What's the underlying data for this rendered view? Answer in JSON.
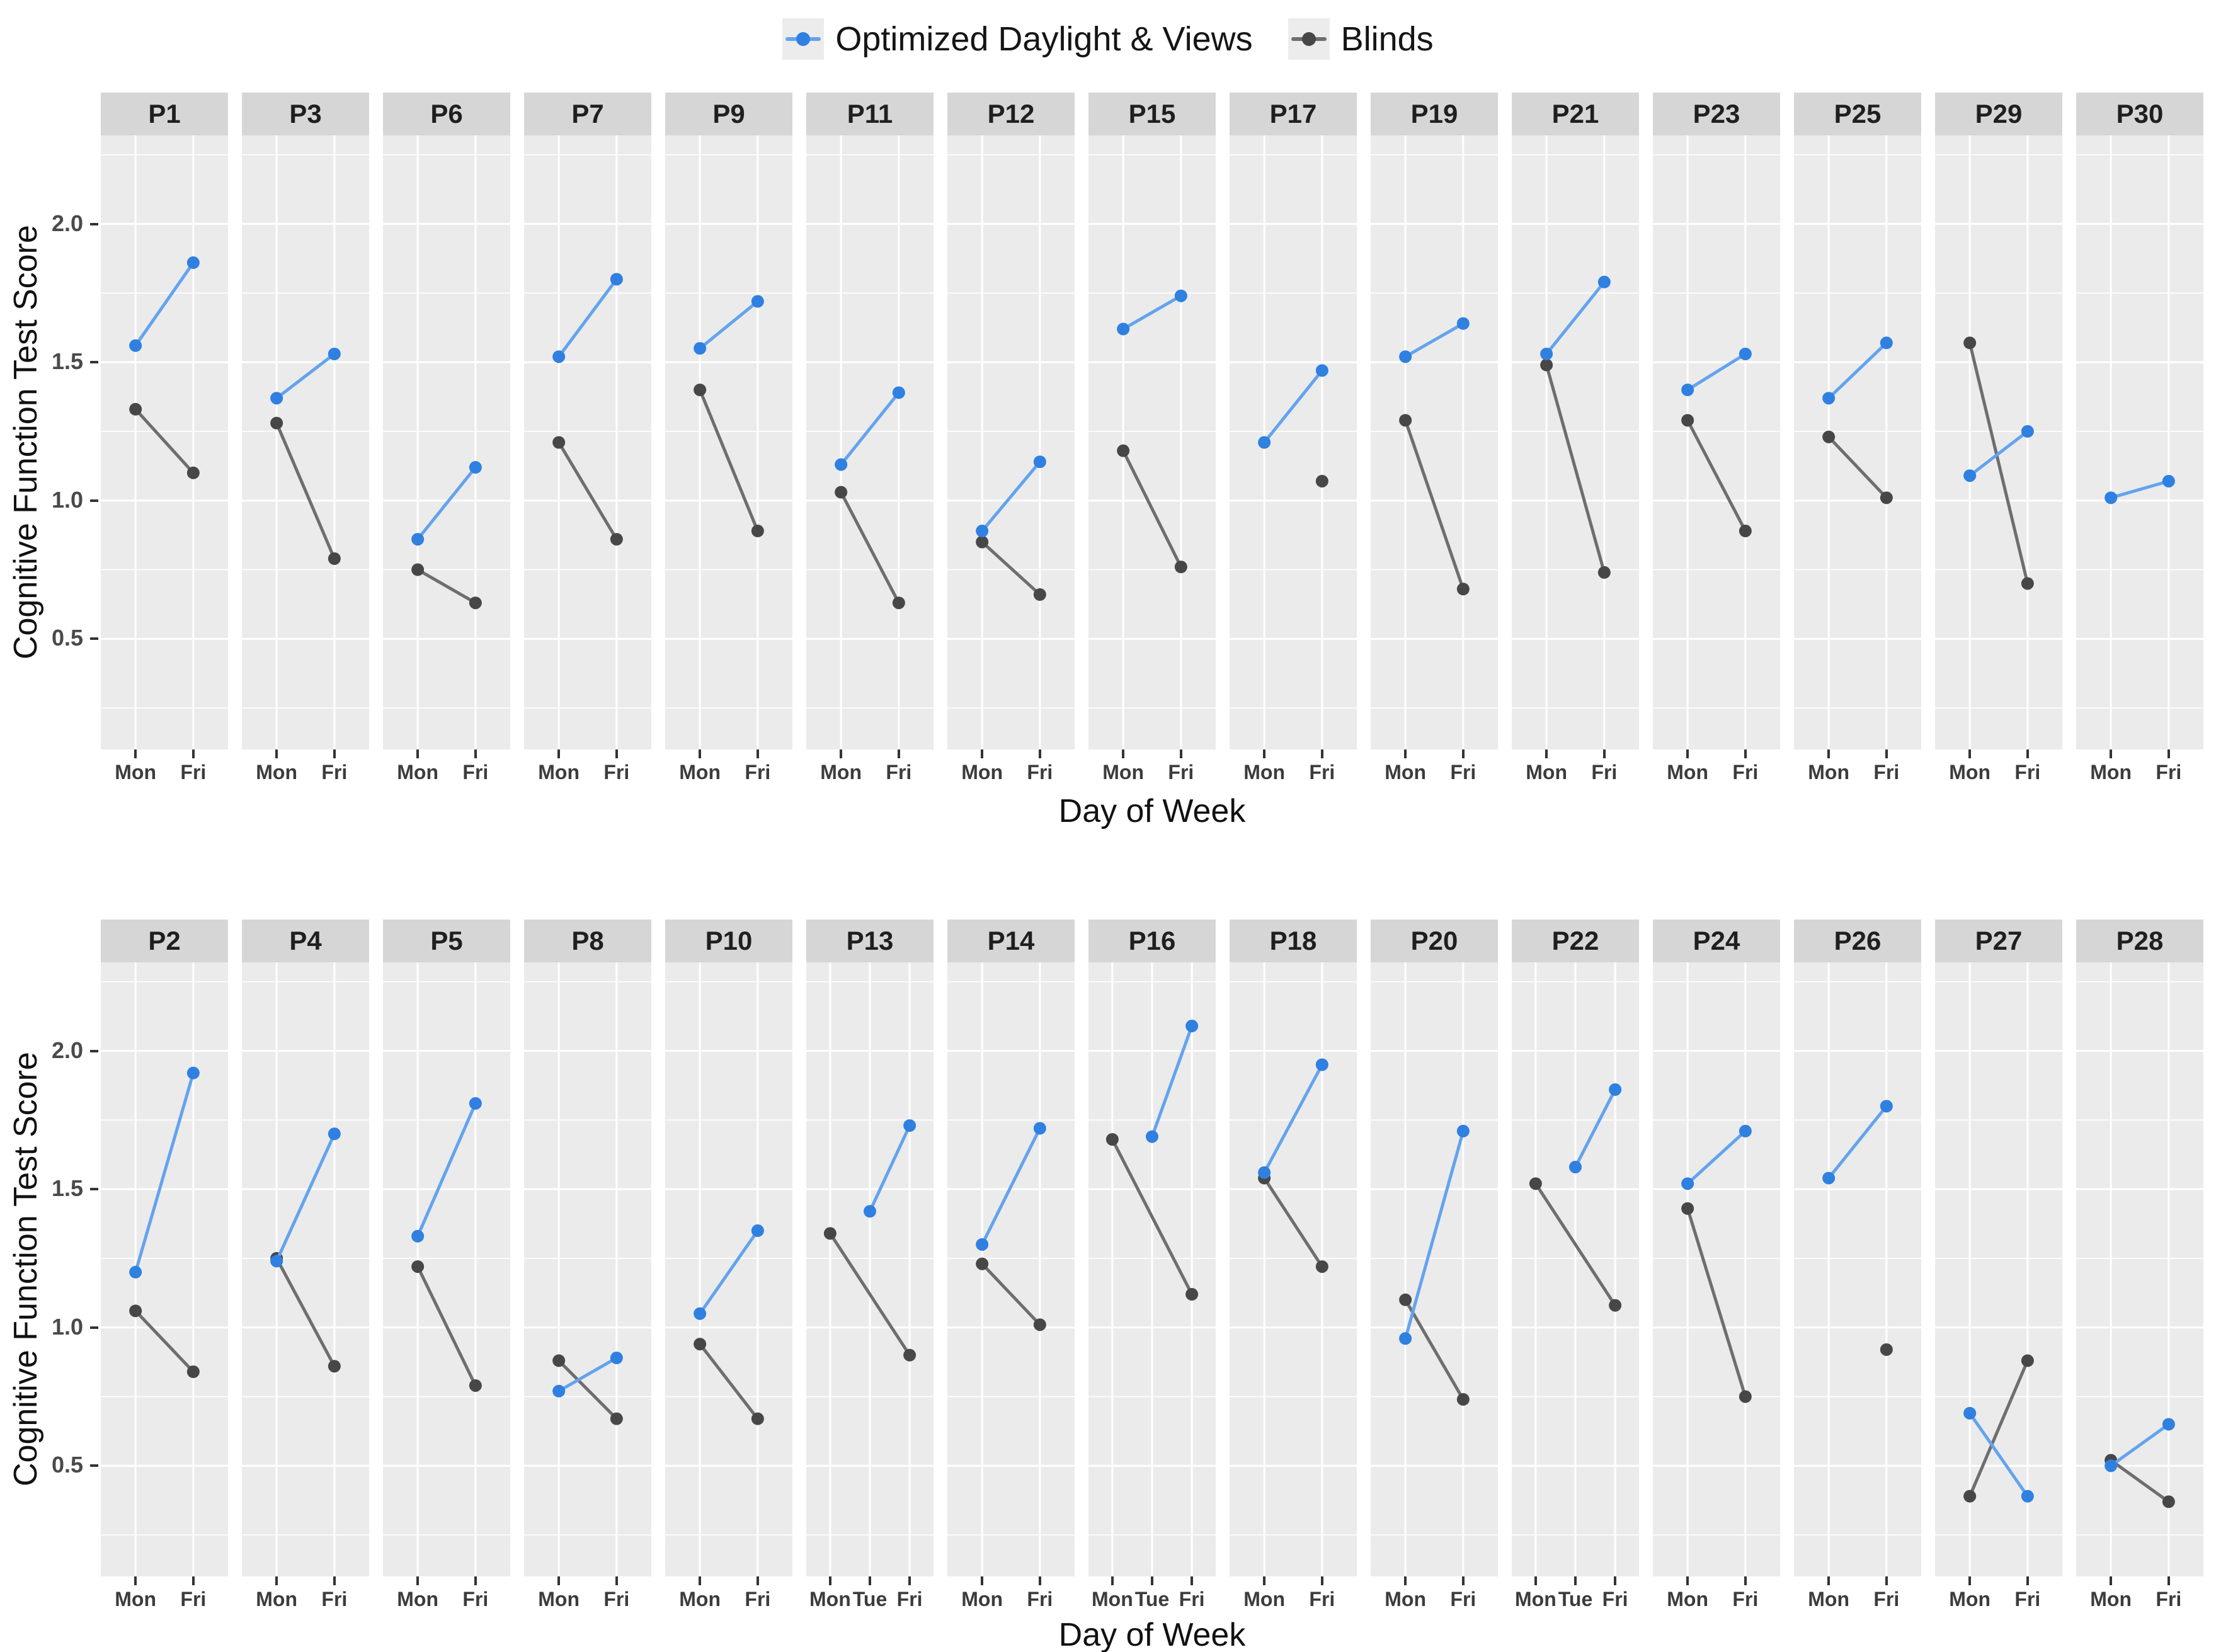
{
  "chart_data": {
    "type": "line",
    "faceted": true,
    "y_label": "Cognitive Function Test Score",
    "ylim": [
      0.1,
      2.32
    ],
    "y_ticks": [
      0.5,
      1.0,
      1.5,
      2.0
    ],
    "y_minor": [
      0.25,
      0.75,
      1.25,
      1.75,
      2.25
    ],
    "grid": "on",
    "legend_position": "top-center",
    "panel_bg": "#ebebeb",
    "strip_bg": "#d6d6d6",
    "grid_color": "#ffffff",
    "legend": [
      {
        "key": "optimized",
        "label": "Optimized Daylight & Views",
        "point_color": "#2f80e0",
        "line_color": "#63a3ee"
      },
      {
        "key": "blinds",
        "label": "Blinds",
        "point_color": "#474747",
        "line_color": "#6e6e6e"
      }
    ],
    "rows": [
      {
        "x_label": "Day of Week",
        "facets": [
          {
            "label": "P1",
            "x_levels": [
              "Mon",
              "Fri"
            ],
            "optimized": [
              [
                "Mon",
                1.56
              ],
              [
                "Fri",
                1.86
              ]
            ],
            "blinds": [
              [
                "Mon",
                1.33
              ],
              [
                "Fri",
                1.1
              ]
            ]
          },
          {
            "label": "P3",
            "x_levels": [
              "Mon",
              "Fri"
            ],
            "optimized": [
              [
                "Mon",
                1.37
              ],
              [
                "Fri",
                1.53
              ]
            ],
            "blinds": [
              [
                "Mon",
                1.28
              ],
              [
                "Fri",
                0.79
              ]
            ]
          },
          {
            "label": "P6",
            "x_levels": [
              "Mon",
              "Fri"
            ],
            "optimized": [
              [
                "Mon",
                0.86
              ],
              [
                "Fri",
                1.12
              ]
            ],
            "blinds": [
              [
                "Mon",
                0.75
              ],
              [
                "Fri",
                0.63
              ]
            ]
          },
          {
            "label": "P7",
            "x_levels": [
              "Mon",
              "Fri"
            ],
            "optimized": [
              [
                "Mon",
                1.52
              ],
              [
                "Fri",
                1.8
              ]
            ],
            "blinds": [
              [
                "Mon",
                1.21
              ],
              [
                "Fri",
                0.86
              ]
            ]
          },
          {
            "label": "P9",
            "x_levels": [
              "Mon",
              "Fri"
            ],
            "optimized": [
              [
                "Mon",
                1.55
              ],
              [
                "Fri",
                1.72
              ]
            ],
            "blinds": [
              [
                "Mon",
                1.4
              ],
              [
                "Fri",
                0.89
              ]
            ]
          },
          {
            "label": "P11",
            "x_levels": [
              "Mon",
              "Fri"
            ],
            "optimized": [
              [
                "Mon",
                1.13
              ],
              [
                "Fri",
                1.39
              ]
            ],
            "blinds": [
              [
                "Mon",
                1.03
              ],
              [
                "Fri",
                0.63
              ]
            ]
          },
          {
            "label": "P12",
            "x_levels": [
              "Mon",
              "Fri"
            ],
            "optimized": [
              [
                "Mon",
                0.89
              ],
              [
                "Fri",
                1.14
              ]
            ],
            "blinds": [
              [
                "Mon",
                0.85
              ],
              [
                "Fri",
                0.66
              ]
            ]
          },
          {
            "label": "P15",
            "x_levels": [
              "Mon",
              "Fri"
            ],
            "optimized": [
              [
                "Mon",
                1.62
              ],
              [
                "Fri",
                1.74
              ]
            ],
            "blinds": [
              [
                "Mon",
                1.18
              ],
              [
                "Fri",
                0.76
              ]
            ]
          },
          {
            "label": "P17",
            "x_levels": [
              "Mon",
              "Fri"
            ],
            "optimized": [
              [
                "Mon",
                1.21
              ],
              [
                "Fri",
                1.47
              ]
            ],
            "blinds": [
              [
                "Fri",
                1.07
              ]
            ]
          },
          {
            "label": "P19",
            "x_levels": [
              "Mon",
              "Fri"
            ],
            "optimized": [
              [
                "Mon",
                1.52
              ],
              [
                "Fri",
                1.64
              ]
            ],
            "blinds": [
              [
                "Mon",
                1.29
              ],
              [
                "Fri",
                0.68
              ]
            ]
          },
          {
            "label": "P21",
            "x_levels": [
              "Mon",
              "Fri"
            ],
            "optimized": [
              [
                "Mon",
                1.53
              ],
              [
                "Fri",
                1.79
              ]
            ],
            "blinds": [
              [
                "Mon",
                1.49
              ],
              [
                "Fri",
                0.74
              ]
            ]
          },
          {
            "label": "P23",
            "x_levels": [
              "Mon",
              "Fri"
            ],
            "optimized": [
              [
                "Mon",
                1.4
              ],
              [
                "Fri",
                1.53
              ]
            ],
            "blinds": [
              [
                "Mon",
                1.29
              ],
              [
                "Fri",
                0.89
              ]
            ]
          },
          {
            "label": "P25",
            "x_levels": [
              "Mon",
              "Fri"
            ],
            "optimized": [
              [
                "Mon",
                1.37
              ],
              [
                "Fri",
                1.57
              ]
            ],
            "blinds": [
              [
                "Mon",
                1.23
              ],
              [
                "Fri",
                1.01
              ]
            ]
          },
          {
            "label": "P29",
            "x_levels": [
              "Mon",
              "Fri"
            ],
            "optimized": [
              [
                "Mon",
                1.09
              ],
              [
                "Fri",
                1.25
              ]
            ],
            "blinds": [
              [
                "Mon",
                1.57
              ],
              [
                "Fri",
                0.7
              ]
            ]
          },
          {
            "label": "P30",
            "x_levels": [
              "Mon",
              "Fri"
            ],
            "optimized": [
              [
                "Mon",
                1.01
              ],
              [
                "Fri",
                1.07
              ]
            ],
            "blinds": []
          }
        ]
      },
      {
        "x_label": "Day of Week",
        "facets": [
          {
            "label": "P2",
            "x_levels": [
              "Mon",
              "Fri"
            ],
            "optimized": [
              [
                "Mon",
                1.2
              ],
              [
                "Fri",
                1.92
              ]
            ],
            "blinds": [
              [
                "Mon",
                1.06
              ],
              [
                "Fri",
                0.84
              ]
            ]
          },
          {
            "label": "P4",
            "x_levels": [
              "Mon",
              "Fri"
            ],
            "optimized": [
              [
                "Mon",
                1.24
              ],
              [
                "Fri",
                1.7
              ]
            ],
            "blinds": [
              [
                "Mon",
                1.25
              ],
              [
                "Fri",
                0.86
              ]
            ]
          },
          {
            "label": "P5",
            "x_levels": [
              "Mon",
              "Fri"
            ],
            "optimized": [
              [
                "Mon",
                1.33
              ],
              [
                "Fri",
                1.81
              ]
            ],
            "blinds": [
              [
                "Mon",
                1.22
              ],
              [
                "Fri",
                0.79
              ]
            ]
          },
          {
            "label": "P8",
            "x_levels": [
              "Mon",
              "Fri"
            ],
            "optimized": [
              [
                "Mon",
                0.77
              ],
              [
                "Fri",
                0.89
              ]
            ],
            "blinds": [
              [
                "Mon",
                0.88
              ],
              [
                "Fri",
                0.67
              ]
            ]
          },
          {
            "label": "P10",
            "x_levels": [
              "Mon",
              "Fri"
            ],
            "optimized": [
              [
                "Mon",
                1.05
              ],
              [
                "Fri",
                1.35
              ]
            ],
            "blinds": [
              [
                "Mon",
                0.94
              ],
              [
                "Fri",
                0.67
              ]
            ]
          },
          {
            "label": "P13",
            "x_levels": [
              "Mon",
              "Tue",
              "Fri"
            ],
            "optimized": [
              [
                "Tue",
                1.42
              ],
              [
                "Fri",
                1.73
              ]
            ],
            "blinds": [
              [
                "Mon",
                1.34
              ],
              [
                "Fri",
                0.9
              ]
            ]
          },
          {
            "label": "P14",
            "x_levels": [
              "Mon",
              "Fri"
            ],
            "optimized": [
              [
                "Mon",
                1.3
              ],
              [
                "Fri",
                1.72
              ]
            ],
            "blinds": [
              [
                "Mon",
                1.23
              ],
              [
                "Fri",
                1.01
              ]
            ]
          },
          {
            "label": "P16",
            "x_levels": [
              "Mon",
              "Tue",
              "Fri"
            ],
            "optimized": [
              [
                "Tue",
                1.69
              ],
              [
                "Fri",
                2.09
              ]
            ],
            "blinds": [
              [
                "Mon",
                1.68
              ],
              [
                "Fri",
                1.12
              ]
            ]
          },
          {
            "label": "P18",
            "x_levels": [
              "Mon",
              "Fri"
            ],
            "optimized": [
              [
                "Mon",
                1.56
              ],
              [
                "Fri",
                1.95
              ]
            ],
            "blinds": [
              [
                "Mon",
                1.54
              ],
              [
                "Fri",
                1.22
              ]
            ]
          },
          {
            "label": "P20",
            "x_levels": [
              "Mon",
              "Fri"
            ],
            "optimized": [
              [
                "Mon",
                0.96
              ],
              [
                "Fri",
                1.71
              ]
            ],
            "blinds": [
              [
                "Mon",
                1.1
              ],
              [
                "Fri",
                0.74
              ]
            ]
          },
          {
            "label": "P22",
            "x_levels": [
              "Mon",
              "Tue",
              "Fri"
            ],
            "optimized": [
              [
                "Tue",
                1.58
              ],
              [
                "Fri",
                1.86
              ]
            ],
            "blinds": [
              [
                "Mon",
                1.52
              ],
              [
                "Fri",
                1.08
              ]
            ]
          },
          {
            "label": "P24",
            "x_levels": [
              "Mon",
              "Fri"
            ],
            "optimized": [
              [
                "Mon",
                1.52
              ],
              [
                "Fri",
                1.71
              ]
            ],
            "blinds": [
              [
                "Mon",
                1.43
              ],
              [
                "Fri",
                0.75
              ]
            ]
          },
          {
            "label": "P26",
            "x_levels": [
              "Mon",
              "Fri"
            ],
            "optimized": [
              [
                "Mon",
                1.54
              ],
              [
                "Fri",
                1.8
              ]
            ],
            "blinds": [
              [
                "Fri",
                0.92
              ]
            ]
          },
          {
            "label": "P27",
            "x_levels": [
              "Mon",
              "Fri"
            ],
            "optimized": [
              [
                "Mon",
                0.69
              ],
              [
                "Fri",
                0.39
              ]
            ],
            "blinds": [
              [
                "Mon",
                0.39
              ],
              [
                "Fri",
                0.88
              ]
            ]
          },
          {
            "label": "P28",
            "x_levels": [
              "Mon",
              "Fri"
            ],
            "optimized": [
              [
                "Mon",
                0.5
              ],
              [
                "Fri",
                0.65
              ]
            ],
            "blinds": [
              [
                "Mon",
                0.52
              ],
              [
                "Fri",
                0.37
              ]
            ]
          }
        ]
      }
    ]
  }
}
